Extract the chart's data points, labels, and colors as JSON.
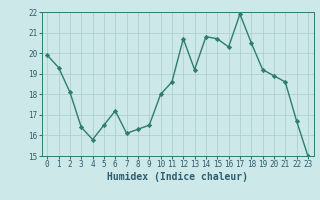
{
  "x": [
    0,
    1,
    2,
    3,
    4,
    5,
    6,
    7,
    8,
    9,
    10,
    11,
    12,
    13,
    14,
    15,
    16,
    17,
    18,
    19,
    20,
    21,
    22,
    23
  ],
  "y": [
    19.9,
    19.3,
    18.1,
    16.4,
    15.8,
    16.5,
    17.2,
    16.1,
    16.3,
    16.5,
    18.0,
    18.6,
    20.7,
    19.2,
    20.8,
    20.7,
    20.3,
    21.9,
    20.5,
    19.2,
    18.9,
    18.6,
    16.7,
    15.0
  ],
  "xlabel": "Humidex (Indice chaleur)",
  "xlim": [
    -0.5,
    23.5
  ],
  "ylim": [
    15,
    22
  ],
  "yticks": [
    15,
    16,
    17,
    18,
    19,
    20,
    21,
    22
  ],
  "xticks": [
    0,
    1,
    2,
    3,
    4,
    5,
    6,
    7,
    8,
    9,
    10,
    11,
    12,
    13,
    14,
    15,
    16,
    17,
    18,
    19,
    20,
    21,
    22,
    23
  ],
  "line_color": "#2e7d6e",
  "marker": "D",
  "marker_size": 2.2,
  "bg_color": "#cce8e8",
  "grid_color": "#aacccc",
  "xlabel_color": "#2e5d6e",
  "tick_color": "#2e5d6e",
  "line_width": 1.0,
  "tick_fontsize": 5.5,
  "xlabel_fontsize": 7.0
}
